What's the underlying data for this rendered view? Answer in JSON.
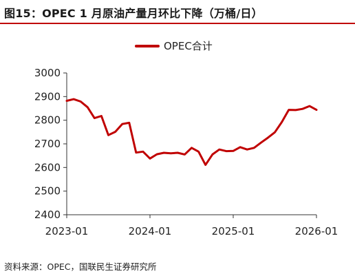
{
  "figure": {
    "title": "图15：OPEC 1 月原油产量月环比下降（万桶/日）",
    "source": "资料来源：OPEC，国联民生证券研究所"
  },
  "colors": {
    "series": "#c00000",
    "title_rule": "#c00000",
    "axis": "#333333"
  },
  "chart_data": {
    "type": "line",
    "title": "",
    "xlabel": "",
    "ylabel": "",
    "ylim": [
      2400,
      3000
    ],
    "yticks": [
      2400,
      2500,
      2600,
      2700,
      2800,
      2900,
      3000
    ],
    "xticks": [
      {
        "month_index": 0,
        "label": "2023-01"
      },
      {
        "month_index": 12,
        "label": "2024-01"
      },
      {
        "month_index": 24,
        "label": "2025-01"
      },
      {
        "month_index": 36,
        "label": "2026-01"
      }
    ],
    "xlim": [
      0,
      36
    ],
    "grid": false,
    "legend_position": "top-center",
    "series": [
      {
        "name": "OPEC合计",
        "x": [
          "2023-01",
          "2023-02",
          "2023-03",
          "2023-04",
          "2023-05",
          "2023-06",
          "2023-07",
          "2023-08",
          "2023-09",
          "2023-10",
          "2023-11",
          "2023-12",
          "2024-01",
          "2024-02",
          "2024-03",
          "2024-04",
          "2024-05",
          "2024-06",
          "2024-07",
          "2024-08",
          "2024-09",
          "2024-10",
          "2024-11",
          "2024-12",
          "2025-01",
          "2025-02",
          "2025-03",
          "2025-04",
          "2025-05",
          "2025-06",
          "2025-07",
          "2025-08",
          "2025-09",
          "2025-10",
          "2025-11",
          "2025-12",
          "2026-01"
        ],
        "values": [
          2882,
          2889,
          2879,
          2855,
          2809,
          2818,
          2737,
          2751,
          2784,
          2789,
          2663,
          2667,
          2638,
          2656,
          2662,
          2660,
          2662,
          2655,
          2683,
          2667,
          2611,
          2655,
          2676,
          2669,
          2670,
          2686,
          2676,
          2683,
          2705,
          2726,
          2749,
          2792,
          2844,
          2843,
          2848,
          2860,
          2844
        ]
      }
    ]
  }
}
